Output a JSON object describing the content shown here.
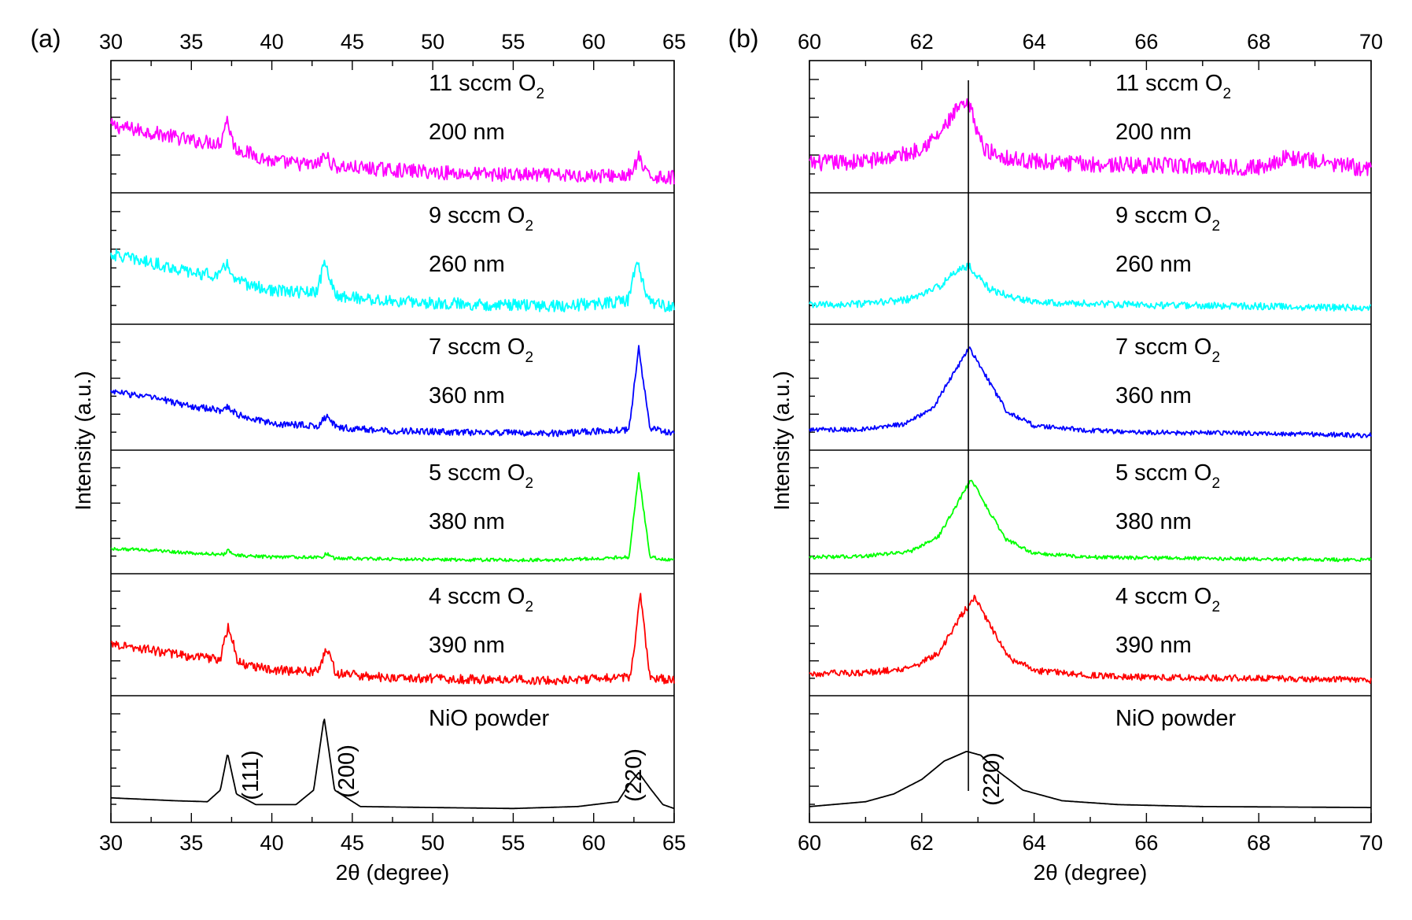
{
  "chart_data": [
    {
      "type": "line",
      "panel_label": "(a)",
      "xlabel": "2θ (degree)",
      "ylabel": "Intensity (a.u.)",
      "xlim": [
        30,
        65
      ],
      "xticks": [
        "30",
        "35",
        "40",
        "45",
        "50",
        "55",
        "60",
        "65"
      ],
      "peak_labels": [
        "(111)",
        "(200)",
        "(220)"
      ],
      "series": [
        {
          "name": "11 sccm O2",
          "label_main": "11 sccm O",
          "label_sub": "2",
          "thickness": "200 nm",
          "color": "#ff00ff",
          "x": [
            30,
            33,
            35,
            36.8,
            37.2,
            37.7,
            40,
            42.8,
            43.3,
            43.9,
            47,
            52,
            58,
            62.3,
            62.8,
            63.3,
            65
          ],
          "y": [
            0.55,
            0.47,
            0.4,
            0.38,
            0.62,
            0.33,
            0.2,
            0.16,
            0.26,
            0.15,
            0.12,
            0.08,
            0.06,
            0.06,
            0.24,
            0.06,
            0.04
          ]
        },
        {
          "name": "9 sccm O2",
          "label_main": "9 sccm O",
          "label_sub": "2",
          "thickness": "260 nm",
          "color": "#00ffff",
          "x": [
            30,
            33,
            35,
            36.8,
            37.2,
            37.7,
            40,
            42.8,
            43.3,
            43.9,
            47,
            52,
            58,
            62.1,
            62.7,
            63.4,
            65
          ],
          "y": [
            0.58,
            0.48,
            0.4,
            0.37,
            0.5,
            0.32,
            0.22,
            0.2,
            0.52,
            0.18,
            0.12,
            0.09,
            0.07,
            0.12,
            0.5,
            0.12,
            0.05
          ]
        },
        {
          "name": "7 sccm O2",
          "label_main": "7 sccm O",
          "label_sub": "2",
          "thickness": "360 nm",
          "color": "#0000ff",
          "x": [
            30,
            33,
            35,
            36.8,
            37.3,
            37.8,
            40,
            42.9,
            43.4,
            44,
            47,
            52,
            58,
            62.2,
            62.8,
            63.5,
            65
          ],
          "y": [
            0.5,
            0.42,
            0.34,
            0.3,
            0.34,
            0.26,
            0.16,
            0.14,
            0.24,
            0.12,
            0.09,
            0.07,
            0.06,
            0.1,
            0.95,
            0.12,
            0.05
          ]
        },
        {
          "name": "5 sccm O2",
          "label_main": "5 sccm O",
          "label_sub": "2",
          "thickness": "380 nm",
          "color": "#00ff00",
          "x": [
            30,
            33,
            35,
            37,
            37.3,
            37.7,
            40,
            43.1,
            43.4,
            43.8,
            47,
            52,
            58,
            62.2,
            62.8,
            63.5,
            65
          ],
          "y": [
            0.15,
            0.13,
            0.1,
            0.09,
            0.13,
            0.08,
            0.06,
            0.06,
            0.1,
            0.05,
            0.04,
            0.03,
            0.03,
            0.06,
            0.95,
            0.06,
            0.02
          ]
        },
        {
          "name": "4 sccm O2",
          "label_main": "4 sccm O",
          "label_sub": "2",
          "thickness": "390 nm",
          "color": "#ff0000",
          "x": [
            30,
            33,
            35,
            36.8,
            37.3,
            37.9,
            40,
            42.9,
            43.4,
            44,
            47,
            52,
            58,
            62.3,
            62.9,
            63.5,
            65
          ],
          "y": [
            0.45,
            0.36,
            0.3,
            0.28,
            0.65,
            0.24,
            0.16,
            0.14,
            0.4,
            0.12,
            0.08,
            0.06,
            0.05,
            0.08,
            0.98,
            0.08,
            0.04
          ]
        },
        {
          "name": "NiO powder",
          "label_main": "NiO powder",
          "label_sub": "",
          "thickness": "",
          "color": "#000000",
          "x": [
            30,
            34,
            36,
            36.8,
            37.25,
            37.8,
            39,
            41.5,
            42.6,
            43.25,
            43.9,
            45.5,
            50,
            55,
            59,
            61.5,
            62.2,
            62.8,
            63.5,
            64.3,
            65
          ],
          "y": [
            0.14,
            0.11,
            0.1,
            0.22,
            0.6,
            0.18,
            0.07,
            0.07,
            0.22,
            0.97,
            0.22,
            0.05,
            0.04,
            0.03,
            0.05,
            0.1,
            0.28,
            0.4,
            0.24,
            0.07,
            0.03
          ]
        }
      ]
    },
    {
      "type": "line",
      "panel_label": "(b)",
      "xlabel": "2θ (degree)",
      "ylabel": "Intensity (a.u.)",
      "xlim": [
        60,
        70
      ],
      "xticks": [
        "60",
        "62",
        "64",
        "66",
        "68",
        "70"
      ],
      "reference_line_x": 62.83,
      "peak_labels": [
        "(220)"
      ],
      "series": [
        {
          "name": "11 sccm O2",
          "label_main": "11 sccm O",
          "label_sub": "2",
          "thickness": "200 nm",
          "color": "#ff00ff",
          "x": [
            60,
            61,
            61.8,
            62.3,
            62.65,
            62.85,
            63.1,
            63.6,
            64.5,
            66,
            68,
            68.5,
            70
          ],
          "y": [
            0.18,
            0.2,
            0.28,
            0.45,
            0.72,
            0.74,
            0.32,
            0.22,
            0.18,
            0.16,
            0.14,
            0.24,
            0.12
          ]
        },
        {
          "name": "9 sccm O2",
          "label_main": "9 sccm O",
          "label_sub": "2",
          "thickness": "260 nm",
          "color": "#00ffff",
          "x": [
            60,
            61,
            61.8,
            62.3,
            62.7,
            62.85,
            63.2,
            63.7,
            64.5,
            66,
            68,
            70
          ],
          "y": [
            0.08,
            0.09,
            0.14,
            0.26,
            0.45,
            0.46,
            0.24,
            0.14,
            0.1,
            0.08,
            0.07,
            0.05
          ]
        },
        {
          "name": "7 sccm O2",
          "label_main": "7 sccm O",
          "label_sub": "2",
          "thickness": "360 nm",
          "color": "#0000ff",
          "x": [
            60,
            61,
            61.7,
            62.2,
            62.6,
            62.85,
            63.1,
            63.5,
            64,
            65,
            66,
            68,
            70
          ],
          "y": [
            0.1,
            0.1,
            0.16,
            0.32,
            0.72,
            0.95,
            0.7,
            0.3,
            0.14,
            0.09,
            0.07,
            0.06,
            0.04
          ]
        },
        {
          "name": "5 sccm O2",
          "label_main": "5 sccm O",
          "label_sub": "2",
          "thickness": "380 nm",
          "color": "#00ff00",
          "x": [
            60,
            61,
            61.8,
            62.3,
            62.65,
            62.88,
            63.1,
            63.5,
            64,
            65,
            66,
            68,
            70
          ],
          "y": [
            0.06,
            0.07,
            0.12,
            0.28,
            0.65,
            0.9,
            0.65,
            0.25,
            0.1,
            0.06,
            0.05,
            0.04,
            0.03
          ]
        },
        {
          "name": "4 sccm O2",
          "label_main": "4 sccm O",
          "label_sub": "2",
          "thickness": "390 nm",
          "color": "#ff0000",
          "x": [
            60,
            61,
            61.8,
            62.3,
            62.7,
            62.95,
            63.2,
            63.6,
            64.1,
            65,
            66,
            68,
            70
          ],
          "y": [
            0.12,
            0.13,
            0.18,
            0.34,
            0.75,
            0.96,
            0.65,
            0.26,
            0.15,
            0.1,
            0.08,
            0.07,
            0.05
          ]
        },
        {
          "name": "NiO powder",
          "label_main": "NiO powder",
          "label_sub": "",
          "thickness": "",
          "color": "#000000",
          "x": [
            60,
            61,
            61.5,
            62,
            62.4,
            62.8,
            63.05,
            63.3,
            63.8,
            64.5,
            65.5,
            67,
            70
          ],
          "y": [
            0.05,
            0.1,
            0.18,
            0.33,
            0.52,
            0.62,
            0.58,
            0.44,
            0.22,
            0.11,
            0.07,
            0.05,
            0.04
          ]
        }
      ]
    }
  ]
}
